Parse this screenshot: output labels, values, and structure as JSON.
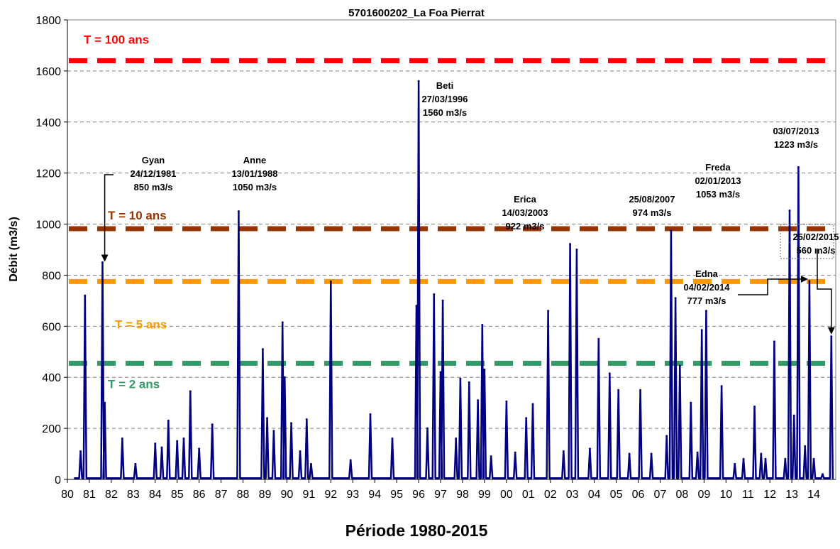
{
  "chart_data": {
    "type": "line",
    "title": "5701600202_La Foa Pierrat",
    "xlabel": "Période 1980-2015",
    "ylabel": "Débit (m3/s)",
    "ylim": [
      0,
      1800
    ],
    "yticks": [
      "0",
      "200",
      "400",
      "600",
      "800",
      "1000",
      "1200",
      "1400",
      "1600",
      "1800"
    ],
    "xlim": [
      1980,
      2015
    ],
    "xticks": [
      "80",
      "81",
      "82",
      "83",
      "84",
      "85",
      "86",
      "87",
      "88",
      "89",
      "90",
      "91",
      "92",
      "93",
      "94",
      "95",
      "96",
      "97",
      "98",
      "99",
      "00",
      "01",
      "02",
      "03",
      "04",
      "05",
      "06",
      "07",
      "08",
      "09",
      "10",
      "11",
      "12",
      "13",
      "14"
    ],
    "grid": "horizontal dashed",
    "series": [
      {
        "color": "#000080",
        "x": [
          1980.6,
          1980.8,
          1981.6,
          1981.7,
          1982.5,
          1983.1,
          1984.0,
          1984.3,
          1984.6,
          1985.0,
          1985.3,
          1985.6,
          1986.0,
          1986.6,
          1987.8,
          1988.9,
          1989.1,
          1989.4,
          1989.8,
          1989.9,
          1990.2,
          1990.6,
          1990.9,
          1991.1,
          1992.0,
          1992.9,
          1993.8,
          1994.8,
          1995.9,
          1996.0,
          1996.4,
          1996.7,
          1997.0,
          1997.1,
          1997.7,
          1997.9,
          1998.3,
          1998.7,
          1998.9,
          1999.0,
          1999.3,
          2000.0,
          2000.4,
          2000.9,
          2001.2,
          2001.9,
          2002.6,
          2002.9,
          2003.2,
          2003.8,
          2004.2,
          2004.7,
          2005.1,
          2005.6,
          2006.1,
          2006.6,
          2007.3,
          2007.5,
          2007.7,
          2007.9,
          2008.4,
          2008.7,
          2008.9,
          2009.1,
          2009.8,
          2010.4,
          2010.8,
          2011.3,
          2011.6,
          2011.8,
          2012.2,
          2012.7,
          2012.9,
          2013.1,
          2013.3,
          2013.6,
          2013.8,
          2014.0,
          2014.4,
          2014.8
        ],
        "y": [
          110,
          720,
          850,
          300,
          160,
          60,
          140,
          125,
          230,
          150,
          160,
          345,
          120,
          215,
          1050,
          510,
          240,
          190,
          615,
          400,
          220,
          110,
          235,
          60,
          775,
          75,
          255,
          160,
          680,
          1560,
          200,
          725,
          420,
          700,
          160,
          395,
          380,
          310,
          605,
          430,
          90,
          305,
          105,
          240,
          295,
          660,
          110,
          922,
          900,
          120,
          550,
          415,
          350,
          100,
          350,
          100,
          170,
          974,
          710,
          445,
          300,
          105,
          585,
          660,
          365,
          60,
          80,
          285,
          100,
          80,
          540,
          80,
          1053,
          250,
          1223,
          130,
          777,
          80,
          20,
          560
        ],
        "base": 5
      }
    ],
    "thresholds": [
      {
        "label": "T = 100 ans",
        "value": 1640,
        "color": "#ff0000"
      },
      {
        "label": "T = 10 ans",
        "value": 982,
        "color": "#993300"
      },
      {
        "label": "T = 5 ans",
        "value": 775,
        "color": "#ff9900"
      },
      {
        "label": "T = 2 ans",
        "value": 455,
        "color": "#339966"
      }
    ],
    "annotations": [
      {
        "lines": [
          "Gyan",
          "24/12/1981",
          "850 m3/s"
        ],
        "x": 1981.7,
        "y": 850
      },
      {
        "lines": [
          "Anne",
          "13/01/1988",
          "1050 m3/s"
        ],
        "x": 1987.8,
        "y": 1050
      },
      {
        "lines": [
          "Beti",
          "27/03/1996",
          "1560 m3/s"
        ],
        "x": 1996.0,
        "y": 1560
      },
      {
        "lines": [
          "Erica",
          "14/03/2003",
          "922 m3/s"
        ],
        "x": 2002.9,
        "y": 922
      },
      {
        "lines": [
          "25/08/2007",
          "974 m3/s"
        ],
        "x": 2007.5,
        "y": 974
      },
      {
        "lines": [
          "Freda",
          "02/01/2013",
          "1053 m3/s"
        ],
        "x": 2012.7,
        "y": 1053
      },
      {
        "lines": [
          "03/07/2013",
          "1223 m3/s"
        ],
        "x": 2013.3,
        "y": 1223
      },
      {
        "lines": [
          "Edna",
          "04/02/2014",
          "777 m3/s"
        ],
        "x": 2013.8,
        "y": 777
      },
      {
        "lines": [
          "25/02/2015",
          "560 m3/s"
        ],
        "x": 2014.8,
        "y": 560
      }
    ]
  }
}
